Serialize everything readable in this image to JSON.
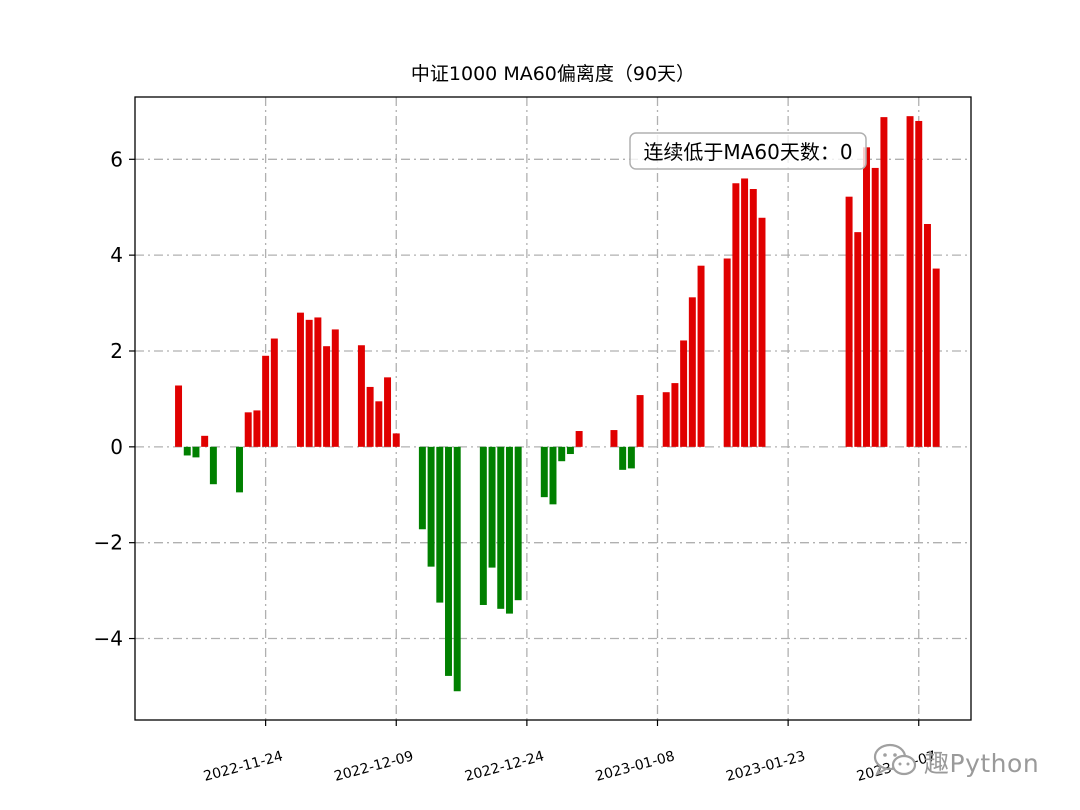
{
  "chart_data": {
    "type": "bar",
    "title": "中证1000 MA60偏离度（90天）",
    "annotation": "连续低于MA60天数：0",
    "annotation_color": "#008000",
    "positive_color": "#e00000",
    "negative_color": "#008000",
    "grid": true,
    "ylim": [
      -5.7,
      7.3
    ],
    "xlim": [
      "2022-11-09",
      "2023-02-13"
    ],
    "yticks": [
      -4,
      -2,
      0,
      2,
      4,
      6
    ],
    "ytick_labels": [
      "−4",
      "−2",
      "0",
      "2",
      "4",
      "6"
    ],
    "xticks": [
      "2022-11-24",
      "2022-12-09",
      "2022-12-24",
      "2023-01-08",
      "2023-01-23",
      "2023-02-07"
    ],
    "xtick_labels": [
      "2022-11-24",
      "2022-12-09",
      "2022-12-24",
      "2023-01-08",
      "2023-01-23",
      "2023-02-07"
    ],
    "x": [
      "2022-11-14",
      "2022-11-15",
      "2022-11-16",
      "2022-11-17",
      "2022-11-18",
      "2022-11-21",
      "2022-11-22",
      "2022-11-23",
      "2022-11-24",
      "2022-11-25",
      "2022-11-28",
      "2022-11-29",
      "2022-11-30",
      "2022-12-01",
      "2022-12-02",
      "2022-12-05",
      "2022-12-06",
      "2022-12-07",
      "2022-12-08",
      "2022-12-09",
      "2022-12-12",
      "2022-12-13",
      "2022-12-14",
      "2022-12-15",
      "2022-12-16",
      "2022-12-19",
      "2022-12-20",
      "2022-12-21",
      "2022-12-22",
      "2022-12-23",
      "2022-12-26",
      "2022-12-27",
      "2022-12-28",
      "2022-12-29",
      "2022-12-30",
      "2023-01-03",
      "2023-01-04",
      "2023-01-05",
      "2023-01-06",
      "2023-01-09",
      "2023-01-10",
      "2023-01-11",
      "2023-01-12",
      "2023-01-13",
      "2023-01-16",
      "2023-01-17",
      "2023-01-18",
      "2023-01-19",
      "2023-01-20",
      "2023-01-30",
      "2023-01-31",
      "2023-02-01",
      "2023-02-02",
      "2023-02-03",
      "2023-02-06",
      "2023-02-07",
      "2023-02-08",
      "2023-02-09",
      "2023-02-10"
    ],
    "values": [
      1.28,
      -0.18,
      -0.22,
      0.23,
      -0.78,
      -0.95,
      0.72,
      0.76,
      1.9,
      2.26,
      2.8,
      2.65,
      2.7,
      2.1,
      2.45,
      2.12,
      1.25,
      0.95,
      1.45,
      0.28,
      -1.72,
      -2.5,
      -3.25,
      -4.78,
      -5.1,
      -3.3,
      -2.52,
      -3.38,
      -3.48,
      -3.2,
      -1.05,
      -1.2,
      -0.3,
      -0.15,
      0.33,
      0.35,
      -0.48,
      -0.45,
      1.08,
      1.14,
      1.33,
      2.22,
      3.12,
      3.78,
      3.93,
      5.5,
      5.6,
      5.38,
      4.78,
      5.22,
      4.48,
      6.25,
      5.82,
      6.88,
      6.9,
      6.8,
      4.65,
      3.72,
      0
    ]
  },
  "watermark": {
    "text": "趣Python",
    "icon": "wechat-icon"
  }
}
